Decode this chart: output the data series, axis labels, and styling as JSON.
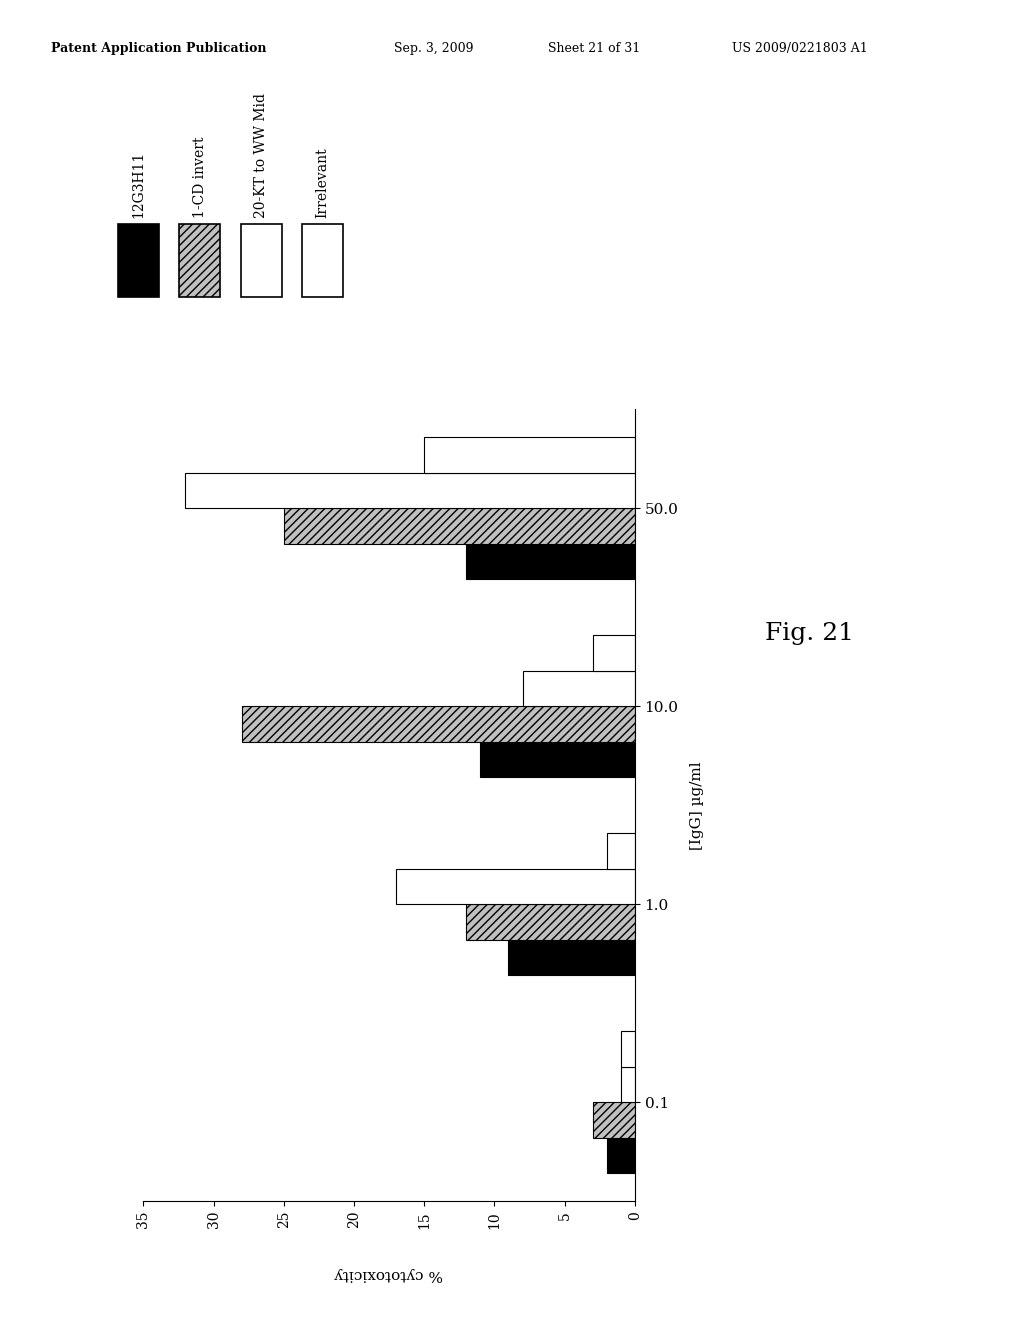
{
  "header_left": "Patent Application Publication",
  "header_mid1": "Sep. 3, 2009",
  "header_mid2": "Sheet 21 of 31",
  "header_right": "US 2009/0221803 A1",
  "fig_label": "Fig. 21",
  "ylabel_right": "[IgG] µg/ml",
  "xlabel_bottom": "% cytotoxicity",
  "categories": [
    "0.1",
    "1.0",
    "10.0",
    "50.0"
  ],
  "series": [
    {
      "label": "12G3H11",
      "facecolor": "#000000",
      "edgecolor": "#000000",
      "hatch": null,
      "values": [
        2,
        9,
        11,
        12
      ]
    },
    {
      "label": "1-CD invert",
      "facecolor": "#c0c0c0",
      "edgecolor": "#000000",
      "hatch": "////",
      "values": [
        3,
        12,
        28,
        25
      ]
    },
    {
      "label": "20-KT to WW Mid",
      "facecolor": "#ffffff",
      "edgecolor": "#000000",
      "hatch": null,
      "values": [
        1,
        17,
        8,
        32
      ]
    },
    {
      "label": "Irrelevant",
      "facecolor": "#ffffff",
      "edgecolor": "#000000",
      "hatch": null,
      "values": [
        1,
        2,
        3,
        15
      ]
    }
  ],
  "xlim_max": 35,
  "xticks": [
    0,
    5,
    10,
    15,
    20,
    25,
    30,
    35
  ],
  "bar_height": 0.18,
  "background_color": "#ffffff"
}
